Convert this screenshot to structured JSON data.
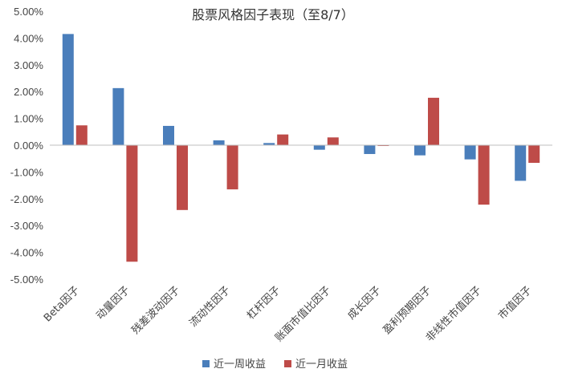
{
  "chart_data": {
    "type": "bar",
    "title": "股票风格因子表现（至8/7）",
    "categories": [
      "Beta因子",
      "动量因子",
      "残差波动因子",
      "流动性因子",
      "杠杆因子",
      "账面市值比因子",
      "成长因子",
      "盈利预期因子",
      "非线性市值因子",
      "市值因子"
    ],
    "series": [
      {
        "name": "近一周收益",
        "color": "#4a7ebb",
        "values": [
          4.15,
          2.13,
          0.72,
          0.18,
          0.08,
          -0.17,
          -0.33,
          -0.38,
          -0.53,
          -1.33
        ]
      },
      {
        "name": "近一月收益",
        "color": "#be4b48",
        "values": [
          0.74,
          -4.35,
          -2.42,
          -1.65,
          0.4,
          0.29,
          -0.03,
          1.77,
          -2.22,
          -0.66
        ]
      }
    ],
    "ylim": [
      -5,
      5
    ],
    "yticks": [
      5,
      4,
      3,
      2,
      1,
      0,
      -1,
      -2,
      -3,
      -4,
      -5
    ],
    "ytick_labels": [
      "5.00%",
      "4.00%",
      "3.00%",
      "2.00%",
      "1.00%",
      "0.00%",
      "-1.00%",
      "-2.00%",
      "-3.00%",
      "-4.00%",
      "-5.00%"
    ],
    "grid": false,
    "legend_position": "bottom",
    "xlabel": "",
    "ylabel": ""
  }
}
